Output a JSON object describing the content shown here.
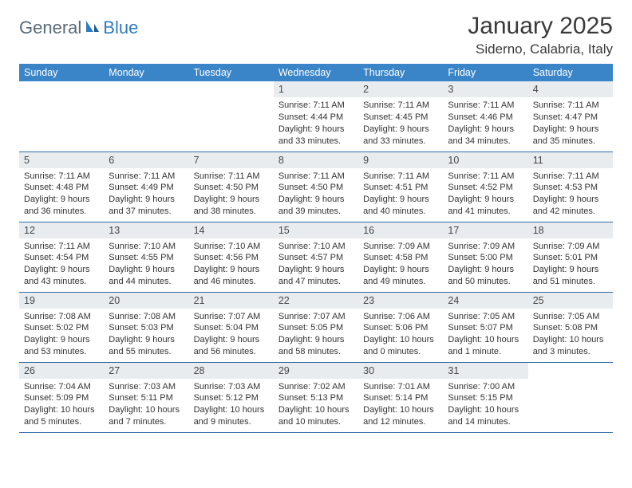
{
  "logo": {
    "part1": "General",
    "part2": "Blue"
  },
  "title": "January 2025",
  "location": "Siderno, Calabria, Italy",
  "colors": {
    "header_bg": "#3a85c8",
    "header_text": "#ffffff",
    "daynum_bg": "#e9ecef",
    "border": "#2f6aa5",
    "logo_gray": "#5a6a78",
    "logo_blue": "#2f7bc0"
  },
  "weekdays": [
    "Sunday",
    "Monday",
    "Tuesday",
    "Wednesday",
    "Thursday",
    "Friday",
    "Saturday"
  ],
  "weeks": [
    [
      {
        "n": "",
        "l1": "",
        "l2": "",
        "l3": "",
        "l4": ""
      },
      {
        "n": "",
        "l1": "",
        "l2": "",
        "l3": "",
        "l4": ""
      },
      {
        "n": "",
        "l1": "",
        "l2": "",
        "l3": "",
        "l4": ""
      },
      {
        "n": "1",
        "l1": "Sunrise: 7:11 AM",
        "l2": "Sunset: 4:44 PM",
        "l3": "Daylight: 9 hours",
        "l4": "and 33 minutes."
      },
      {
        "n": "2",
        "l1": "Sunrise: 7:11 AM",
        "l2": "Sunset: 4:45 PM",
        "l3": "Daylight: 9 hours",
        "l4": "and 33 minutes."
      },
      {
        "n": "3",
        "l1": "Sunrise: 7:11 AM",
        "l2": "Sunset: 4:46 PM",
        "l3": "Daylight: 9 hours",
        "l4": "and 34 minutes."
      },
      {
        "n": "4",
        "l1": "Sunrise: 7:11 AM",
        "l2": "Sunset: 4:47 PM",
        "l3": "Daylight: 9 hours",
        "l4": "and 35 minutes."
      }
    ],
    [
      {
        "n": "5",
        "l1": "Sunrise: 7:11 AM",
        "l2": "Sunset: 4:48 PM",
        "l3": "Daylight: 9 hours",
        "l4": "and 36 minutes."
      },
      {
        "n": "6",
        "l1": "Sunrise: 7:11 AM",
        "l2": "Sunset: 4:49 PM",
        "l3": "Daylight: 9 hours",
        "l4": "and 37 minutes."
      },
      {
        "n": "7",
        "l1": "Sunrise: 7:11 AM",
        "l2": "Sunset: 4:50 PM",
        "l3": "Daylight: 9 hours",
        "l4": "and 38 minutes."
      },
      {
        "n": "8",
        "l1": "Sunrise: 7:11 AM",
        "l2": "Sunset: 4:50 PM",
        "l3": "Daylight: 9 hours",
        "l4": "and 39 minutes."
      },
      {
        "n": "9",
        "l1": "Sunrise: 7:11 AM",
        "l2": "Sunset: 4:51 PM",
        "l3": "Daylight: 9 hours",
        "l4": "and 40 minutes."
      },
      {
        "n": "10",
        "l1": "Sunrise: 7:11 AM",
        "l2": "Sunset: 4:52 PM",
        "l3": "Daylight: 9 hours",
        "l4": "and 41 minutes."
      },
      {
        "n": "11",
        "l1": "Sunrise: 7:11 AM",
        "l2": "Sunset: 4:53 PM",
        "l3": "Daylight: 9 hours",
        "l4": "and 42 minutes."
      }
    ],
    [
      {
        "n": "12",
        "l1": "Sunrise: 7:11 AM",
        "l2": "Sunset: 4:54 PM",
        "l3": "Daylight: 9 hours",
        "l4": "and 43 minutes."
      },
      {
        "n": "13",
        "l1": "Sunrise: 7:10 AM",
        "l2": "Sunset: 4:55 PM",
        "l3": "Daylight: 9 hours",
        "l4": "and 44 minutes."
      },
      {
        "n": "14",
        "l1": "Sunrise: 7:10 AM",
        "l2": "Sunset: 4:56 PM",
        "l3": "Daylight: 9 hours",
        "l4": "and 46 minutes."
      },
      {
        "n": "15",
        "l1": "Sunrise: 7:10 AM",
        "l2": "Sunset: 4:57 PM",
        "l3": "Daylight: 9 hours",
        "l4": "and 47 minutes."
      },
      {
        "n": "16",
        "l1": "Sunrise: 7:09 AM",
        "l2": "Sunset: 4:58 PM",
        "l3": "Daylight: 9 hours",
        "l4": "and 49 minutes."
      },
      {
        "n": "17",
        "l1": "Sunrise: 7:09 AM",
        "l2": "Sunset: 5:00 PM",
        "l3": "Daylight: 9 hours",
        "l4": "and 50 minutes."
      },
      {
        "n": "18",
        "l1": "Sunrise: 7:09 AM",
        "l2": "Sunset: 5:01 PM",
        "l3": "Daylight: 9 hours",
        "l4": "and 51 minutes."
      }
    ],
    [
      {
        "n": "19",
        "l1": "Sunrise: 7:08 AM",
        "l2": "Sunset: 5:02 PM",
        "l3": "Daylight: 9 hours",
        "l4": "and 53 minutes."
      },
      {
        "n": "20",
        "l1": "Sunrise: 7:08 AM",
        "l2": "Sunset: 5:03 PM",
        "l3": "Daylight: 9 hours",
        "l4": "and 55 minutes."
      },
      {
        "n": "21",
        "l1": "Sunrise: 7:07 AM",
        "l2": "Sunset: 5:04 PM",
        "l3": "Daylight: 9 hours",
        "l4": "and 56 minutes."
      },
      {
        "n": "22",
        "l1": "Sunrise: 7:07 AM",
        "l2": "Sunset: 5:05 PM",
        "l3": "Daylight: 9 hours",
        "l4": "and 58 minutes."
      },
      {
        "n": "23",
        "l1": "Sunrise: 7:06 AM",
        "l2": "Sunset: 5:06 PM",
        "l3": "Daylight: 10 hours",
        "l4": "and 0 minutes."
      },
      {
        "n": "24",
        "l1": "Sunrise: 7:05 AM",
        "l2": "Sunset: 5:07 PM",
        "l3": "Daylight: 10 hours",
        "l4": "and 1 minute."
      },
      {
        "n": "25",
        "l1": "Sunrise: 7:05 AM",
        "l2": "Sunset: 5:08 PM",
        "l3": "Daylight: 10 hours",
        "l4": "and 3 minutes."
      }
    ],
    [
      {
        "n": "26",
        "l1": "Sunrise: 7:04 AM",
        "l2": "Sunset: 5:09 PM",
        "l3": "Daylight: 10 hours",
        "l4": "and 5 minutes."
      },
      {
        "n": "27",
        "l1": "Sunrise: 7:03 AM",
        "l2": "Sunset: 5:11 PM",
        "l3": "Daylight: 10 hours",
        "l4": "and 7 minutes."
      },
      {
        "n": "28",
        "l1": "Sunrise: 7:03 AM",
        "l2": "Sunset: 5:12 PM",
        "l3": "Daylight: 10 hours",
        "l4": "and 9 minutes."
      },
      {
        "n": "29",
        "l1": "Sunrise: 7:02 AM",
        "l2": "Sunset: 5:13 PM",
        "l3": "Daylight: 10 hours",
        "l4": "and 10 minutes."
      },
      {
        "n": "30",
        "l1": "Sunrise: 7:01 AM",
        "l2": "Sunset: 5:14 PM",
        "l3": "Daylight: 10 hours",
        "l4": "and 12 minutes."
      },
      {
        "n": "31",
        "l1": "Sunrise: 7:00 AM",
        "l2": "Sunset: 5:15 PM",
        "l3": "Daylight: 10 hours",
        "l4": "and 14 minutes."
      },
      {
        "n": "",
        "l1": "",
        "l2": "",
        "l3": "",
        "l4": ""
      }
    ]
  ]
}
